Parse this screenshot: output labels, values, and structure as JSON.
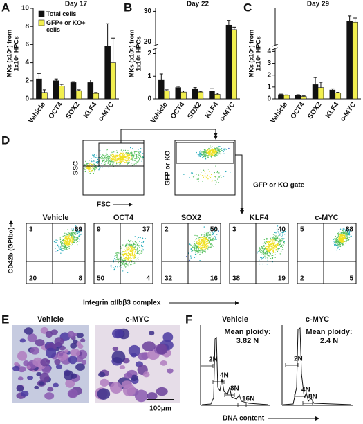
{
  "chart_data": [
    {
      "type": "bar",
      "panel": "A",
      "title": "Day 17",
      "ylabel": [
        "MKs (x10⁵) from",
        "1x10⁵ HPCs"
      ],
      "categories": [
        "Vehicle",
        "OCT4",
        "SOX2",
        "KLF4",
        "c-MYC"
      ],
      "series": [
        {
          "name": "Total cells",
          "color": "#111111",
          "values": [
            2.2,
            2.0,
            1.8,
            1.8,
            5.8
          ],
          "errors": [
            0.6,
            0.2,
            0.1,
            0.3,
            2.5
          ]
        },
        {
          "name": "GFP+ or KO+ cells",
          "color": "#f2ef4f",
          "values": [
            0.7,
            1.4,
            0.9,
            0.6,
            4.0
          ],
          "errors": [
            0.3,
            0.2,
            0.1,
            0.1,
            2.7
          ]
        }
      ],
      "ylim": [
        0,
        10
      ],
      "yticks": [
        0,
        2,
        4,
        6,
        8,
        10
      ],
      "legend": "upper left"
    },
    {
      "type": "bar",
      "panel": "B",
      "title": "Day 22",
      "ylabel": [
        "MKs (x10⁵) from",
        "1x10⁵ HPCs"
      ],
      "categories": [
        "Vehicle",
        "OCT4",
        "SOX2",
        "KLF4",
        "c-MYC"
      ],
      "series": [
        {
          "color": "#111111",
          "values": [
            0.85,
            0.5,
            0.45,
            0.35,
            25.5
          ],
          "errors": [
            0.25,
            0.05,
            0.05,
            0.1,
            1.5
          ]
        },
        {
          "color": "#f2ef4f",
          "values": [
            0.35,
            0.3,
            0.3,
            0.2,
            24
          ],
          "errors": [
            0.05,
            0.05,
            0.03,
            0.05,
            0.8
          ]
        }
      ],
      "ylim": [
        0,
        31
      ],
      "ybreak": [
        2.2,
        19
      ],
      "yticks": [
        0,
        1,
        2,
        20,
        30
      ]
    },
    {
      "type": "bar",
      "panel": "C",
      "title": "Day 29",
      "ylabel": [
        "MKs (x10⁵) from",
        "1x10⁵ HPCs"
      ],
      "categories": [
        "Vehicle",
        "OCT4",
        "SOX2",
        "KLF4",
        "c-MYC"
      ],
      "series": [
        {
          "color": "#111111",
          "values": [
            0.35,
            0.3,
            1.2,
            0.75,
            31
          ],
          "errors": [
            0.05,
            0.05,
            0.6,
            0.1,
            2.5
          ]
        },
        {
          "color": "#f2ef4f",
          "values": [
            0.3,
            0.2,
            0.95,
            0.5,
            30.5
          ],
          "errors": [
            0.03,
            0.05,
            0.45,
            0.05,
            2
          ]
        }
      ],
      "ylim": [
        0,
        37
      ],
      "ybreak": [
        4.2,
        20
      ],
      "yticks": [
        0,
        1,
        2,
        3,
        4
      ]
    }
  ],
  "flow": {
    "panel": "D",
    "gate_plot": {
      "ylabel": "SSC",
      "xlabel": "FSC"
    },
    "gfp_plot": {
      "ylabel": "GFP or KO"
    },
    "gate_label": "GFP or KO gate",
    "ylabel": "CD42b (GPIbα)",
    "xlabel": "Integrin αIIbβ3 complex",
    "plots": [
      {
        "title": "Vehicle",
        "quadrants": [
          3,
          69,
          20,
          8
        ]
      },
      {
        "title": "OCT4",
        "quadrants": [
          9,
          37,
          50,
          4
        ]
      },
      {
        "title": "SOX2",
        "quadrants": [
          2,
          50,
          32,
          16
        ]
      },
      {
        "title": "KLF4",
        "quadrants": [
          3,
          40,
          38,
          19
        ]
      },
      {
        "title": "c-MYC",
        "quadrants": [
          5,
          88,
          2,
          5
        ]
      }
    ]
  },
  "micrographs": {
    "panel": "E",
    "images": [
      {
        "title": "Vehicle"
      },
      {
        "title": "c-MYC"
      }
    ],
    "scale_bar": "100μm"
  },
  "ploidy": {
    "panel": "F",
    "xlabel": "DNA content",
    "plots": [
      {
        "title": "Vehicle",
        "mean_label": "Mean ploidy:",
        "mean": "3.82 N",
        "peaks": [
          "2N",
          "4N",
          "8N",
          "16N"
        ]
      },
      {
        "title": "c-MYC",
        "mean_label": "Mean ploidy:",
        "mean": "2.4 N",
        "peaks": [
          "2N",
          "4N",
          "8N"
        ]
      }
    ]
  }
}
